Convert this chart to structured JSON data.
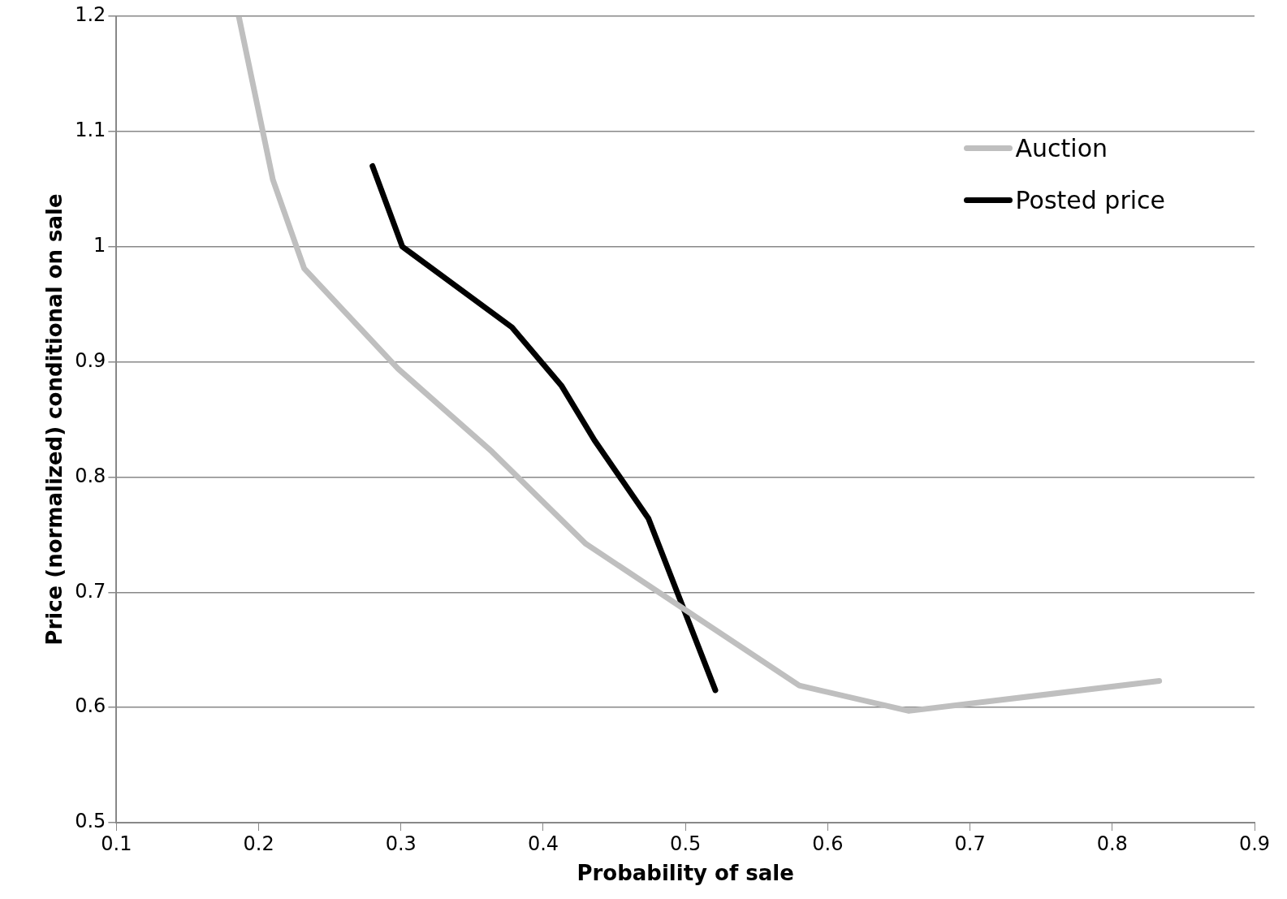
{
  "chart_data": {
    "type": "line",
    "xlabel": "Probability of sale",
    "ylabel": "Price (normalized) conditional on sale",
    "xlim": [
      0.1,
      0.9
    ],
    "xticks": [
      0.1,
      0.2,
      0.3,
      0.4,
      0.5,
      0.6,
      0.7,
      0.8,
      0.9
    ],
    "ylim": [
      0.5,
      1.2
    ],
    "yticks": [
      0.5,
      0.6,
      0.7,
      0.8,
      0.9,
      1,
      1.1,
      1.2
    ],
    "grid": "y",
    "legend": "top right",
    "marker": "none",
    "line_style": "solid",
    "series": [
      {
        "name": "Auction",
        "color": "#bfbfbf",
        "x": [
          0.186,
          0.21,
          0.232,
          0.298,
          0.364,
          0.43,
          0.58,
          0.657,
          0.833
        ],
        "values": [
          1.2,
          1.058,
          0.981,
          0.894,
          0.822,
          0.742,
          0.619,
          0.597,
          0.623
        ]
      },
      {
        "name": "Posted price",
        "color": "#000000",
        "x": [
          0.28,
          0.301,
          0.378,
          0.413,
          0.436,
          0.474,
          0.521
        ],
        "values": [
          1.07,
          1.0,
          0.93,
          0.879,
          0.832,
          0.764,
          0.615
        ]
      }
    ]
  }
}
